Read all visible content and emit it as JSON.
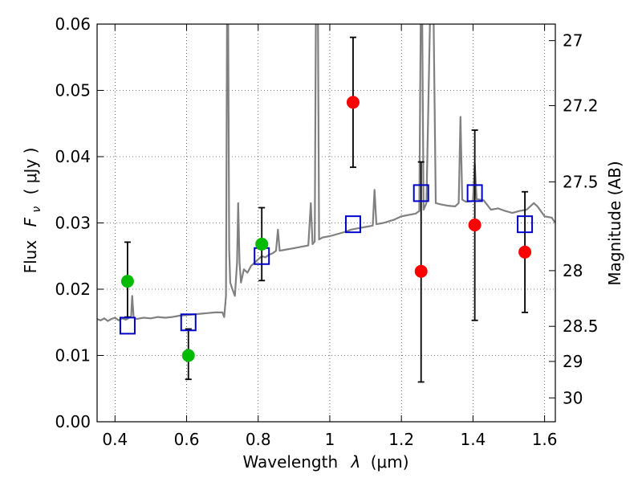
{
  "chart_data": {
    "type": "scatter",
    "xlabel": "Wavelength",
    "xlabel_symbol": "λ",
    "xlabel_unit": "(μm)",
    "ylabel": "Flux",
    "ylabel_symbol": "F",
    "ylabel_subscript": "ν",
    "ylabel_unit": "( μJy )",
    "y2label": "Magnitude (AB)",
    "xlim": [
      0.35,
      1.63
    ],
    "ylim": [
      0.0,
      0.06
    ],
    "grid": true,
    "x_ticks": [
      0.4,
      0.6,
      0.8,
      1.0,
      1.2,
      1.4,
      1.6
    ],
    "x_tick_labels": [
      "0.4",
      "0.6",
      "0.8",
      "1",
      "1.2",
      "1.4",
      "1.6"
    ],
    "y_ticks": [
      0.0,
      0.01,
      0.02,
      0.03,
      0.04,
      0.05,
      0.06
    ],
    "y_tick_labels": [
      "0.00",
      "0.01",
      "0.02",
      "0.03",
      "0.04",
      "0.05",
      "0.06"
    ],
    "y2_ticks": [
      {
        "label": "27",
        "flux": 0.0575
      },
      {
        "label": "27.2",
        "flux": 0.0477
      },
      {
        "label": "27.5",
        "flux": 0.0362
      },
      {
        "label": "28",
        "flux": 0.0228
      },
      {
        "label": "28.5",
        "flux": 0.0144
      },
      {
        "label": "29",
        "flux": 0.0091
      },
      {
        "label": "30",
        "flux": 0.0036
      }
    ],
    "series": [
      {
        "kind": "spectrum",
        "color": "#808080",
        "points": [
          [
            0.35,
            0.0155
          ],
          [
            0.36,
            0.0153
          ],
          [
            0.37,
            0.0156
          ],
          [
            0.38,
            0.0152
          ],
          [
            0.39,
            0.0155
          ],
          [
            0.4,
            0.0157
          ],
          [
            0.41,
            0.0153
          ],
          [
            0.42,
            0.0156
          ],
          [
            0.43,
            0.0154
          ],
          [
            0.44,
            0.0157
          ],
          [
            0.445,
            0.0158
          ],
          [
            0.448,
            0.019
          ],
          [
            0.452,
            0.0158
          ],
          [
            0.46,
            0.0155
          ],
          [
            0.48,
            0.0157
          ],
          [
            0.5,
            0.0156
          ],
          [
            0.52,
            0.0158
          ],
          [
            0.54,
            0.0157
          ],
          [
            0.56,
            0.0158
          ],
          [
            0.58,
            0.016
          ],
          [
            0.6,
            0.0161
          ],
          [
            0.62,
            0.0162
          ],
          [
            0.64,
            0.0163
          ],
          [
            0.66,
            0.0164
          ],
          [
            0.68,
            0.0165
          ],
          [
            0.7,
            0.0165
          ],
          [
            0.705,
            0.0158
          ],
          [
            0.71,
            0.019
          ],
          [
            0.713,
            0.06
          ],
          [
            0.716,
            0.061
          ],
          [
            0.719,
            0.026
          ],
          [
            0.722,
            0.021
          ],
          [
            0.728,
            0.02
          ],
          [
            0.735,
            0.019
          ],
          [
            0.741,
            0.024
          ],
          [
            0.744,
            0.033
          ],
          [
            0.748,
            0.024
          ],
          [
            0.752,
            0.021
          ],
          [
            0.76,
            0.023
          ],
          [
            0.77,
            0.0225
          ],
          [
            0.78,
            0.0235
          ],
          [
            0.79,
            0.024
          ],
          [
            0.8,
            0.0245
          ],
          [
            0.81,
            0.025
          ],
          [
            0.82,
            0.0248
          ],
          [
            0.83,
            0.0252
          ],
          [
            0.84,
            0.0254
          ],
          [
            0.85,
            0.0258
          ],
          [
            0.855,
            0.029
          ],
          [
            0.86,
            0.0258
          ],
          [
            0.88,
            0.026
          ],
          [
            0.9,
            0.0262
          ],
          [
            0.92,
            0.0264
          ],
          [
            0.94,
            0.0266
          ],
          [
            0.947,
            0.033
          ],
          [
            0.952,
            0.0268
          ],
          [
            0.958,
            0.0272
          ],
          [
            0.961,
            0.061
          ],
          [
            0.967,
            0.061
          ],
          [
            0.97,
            0.0275
          ],
          [
            0.98,
            0.0278
          ],
          [
            1.0,
            0.028
          ],
          [
            1.02,
            0.0283
          ],
          [
            1.04,
            0.0286
          ],
          [
            1.06,
            0.029
          ],
          [
            1.08,
            0.0292
          ],
          [
            1.1,
            0.0294
          ],
          [
            1.12,
            0.0296
          ],
          [
            1.125,
            0.035
          ],
          [
            1.13,
            0.0298
          ],
          [
            1.15,
            0.03
          ],
          [
            1.18,
            0.0305
          ],
          [
            1.2,
            0.031
          ],
          [
            1.22,
            0.0312
          ],
          [
            1.24,
            0.0314
          ],
          [
            1.25,
            0.0318
          ],
          [
            1.254,
            0.061
          ],
          [
            1.258,
            0.061
          ],
          [
            1.262,
            0.032
          ],
          [
            1.27,
            0.033
          ],
          [
            1.28,
            0.061
          ],
          [
            1.286,
            0.061
          ],
          [
            1.29,
            0.061
          ],
          [
            1.296,
            0.033
          ],
          [
            1.31,
            0.0328
          ],
          [
            1.33,
            0.0326
          ],
          [
            1.35,
            0.0325
          ],
          [
            1.36,
            0.033
          ],
          [
            1.365,
            0.046
          ],
          [
            1.37,
            0.0335
          ],
          [
            1.38,
            0.0332
          ],
          [
            1.4,
            0.0333
          ],
          [
            1.405,
            0.039
          ],
          [
            1.41,
            0.0336
          ],
          [
            1.43,
            0.0334
          ],
          [
            1.45,
            0.032
          ],
          [
            1.47,
            0.0322
          ],
          [
            1.49,
            0.0318
          ],
          [
            1.51,
            0.0315
          ],
          [
            1.53,
            0.0318
          ],
          [
            1.55,
            0.032
          ],
          [
            1.57,
            0.033
          ],
          [
            1.58,
            0.0325
          ],
          [
            1.6,
            0.031
          ],
          [
            1.62,
            0.0308
          ],
          [
            1.63,
            0.03
          ]
        ]
      },
      {
        "kind": "model-boxes",
        "color": "#0000cc",
        "points": [
          [
            0.435,
            0.0145
          ],
          [
            0.605,
            0.015
          ],
          [
            0.81,
            0.025
          ],
          [
            1.065,
            0.0298
          ],
          [
            1.255,
            0.0345
          ],
          [
            1.405,
            0.0345
          ],
          [
            1.545,
            0.0298
          ]
        ]
      },
      {
        "kind": "observed-green",
        "color": "#00bb00",
        "points": [
          {
            "x": 0.435,
            "y": 0.0212,
            "err_lo": 0.0158,
            "err_hi": 0.0271
          },
          {
            "x": 0.605,
            "y": 0.01,
            "err_lo": 0.0064,
            "err_hi": 0.014
          },
          {
            "x": 0.81,
            "y": 0.0268,
            "err_lo": 0.0213,
            "err_hi": 0.0323
          }
        ]
      },
      {
        "kind": "observed-red",
        "color": "#ff0000",
        "points": [
          {
            "x": 1.065,
            "y": 0.0482,
            "err_lo": 0.0384,
            "err_hi": 0.058
          },
          {
            "x": 1.255,
            "y": 0.0227,
            "err_lo": 0.006,
            "err_hi": 0.0392
          },
          {
            "x": 1.405,
            "y": 0.0297,
            "err_lo": 0.0153,
            "err_hi": 0.044
          },
          {
            "x": 1.545,
            "y": 0.0256,
            "err_lo": 0.0165,
            "err_hi": 0.0347
          }
        ]
      }
    ]
  }
}
